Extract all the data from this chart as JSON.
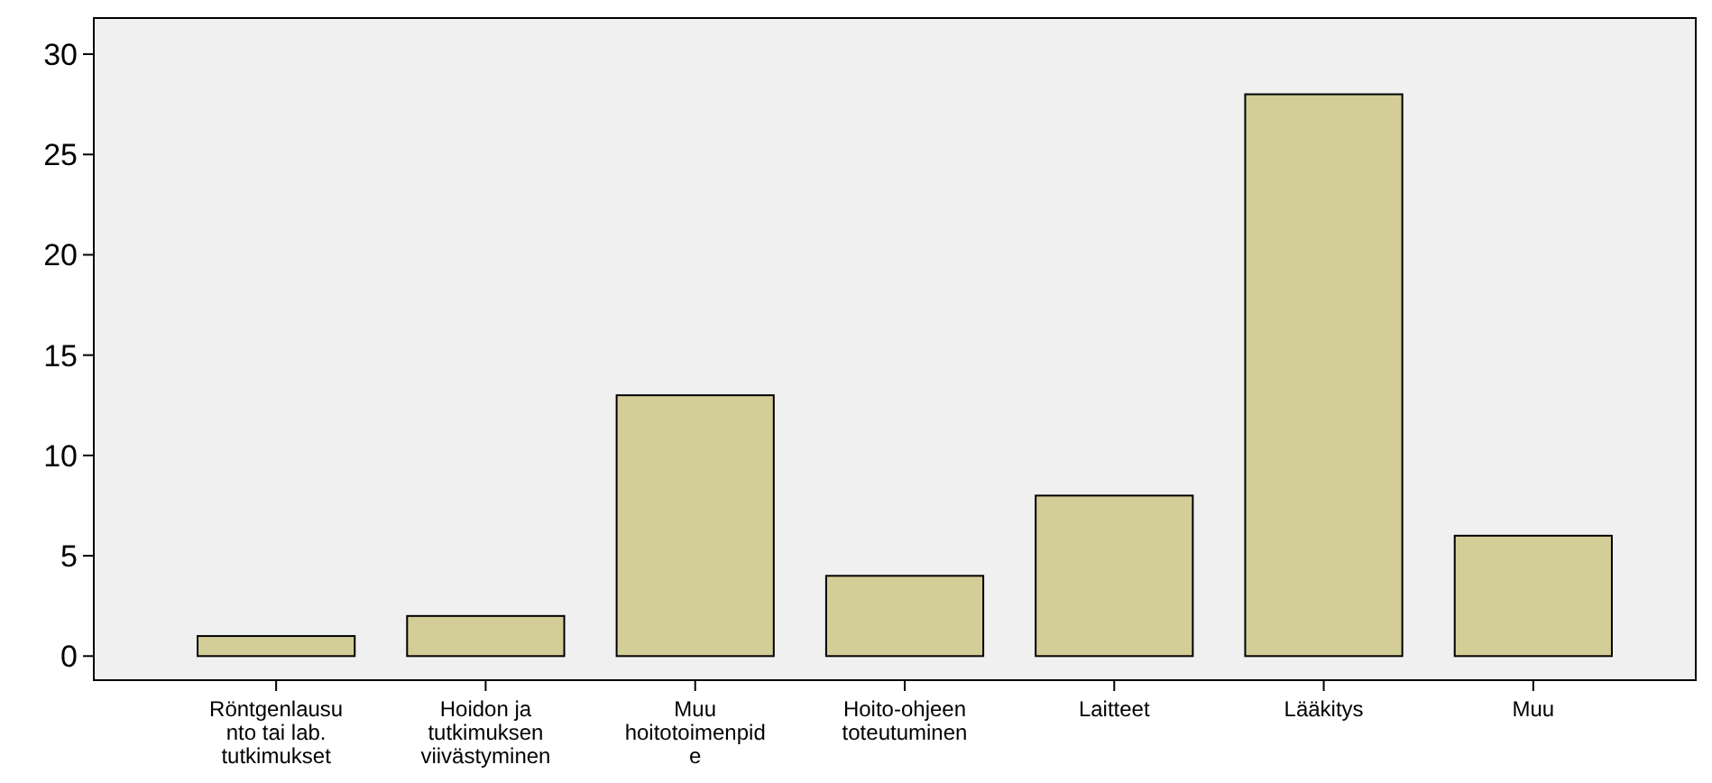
{
  "chart_data": {
    "type": "bar",
    "categories": [
      "Röntgenlausu\nnto tai lab.\ntutkimukset",
      "Hoidon ja\ntutkimuksen\nviivästyminen",
      "Muu\nhoitotoimenpid\ne",
      "Hoito-ohjeen\ntoteutuminen",
      "Laitteet",
      "Lääkitys",
      "Muu"
    ],
    "values": [
      1,
      2,
      13,
      4,
      8,
      28,
      6
    ],
    "color": "#d3ce97",
    "ylim": [
      -1.2,
      31.8
    ],
    "yticks": [
      0,
      5,
      10,
      15,
      20,
      25,
      30
    ],
    "grid": false
  }
}
